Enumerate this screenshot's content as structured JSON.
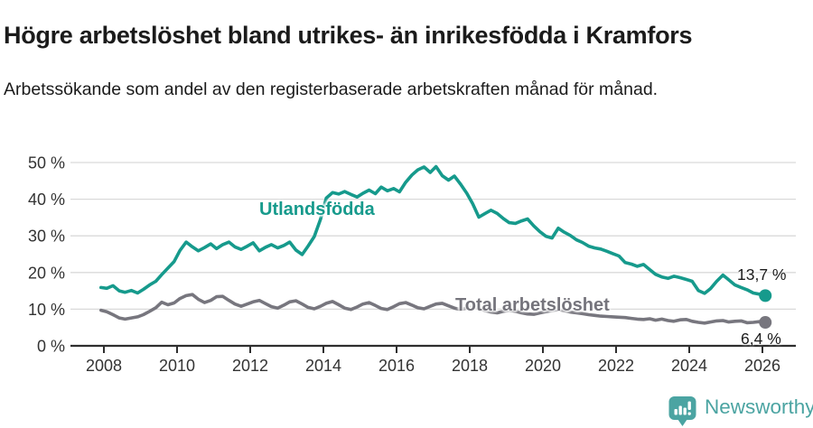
{
  "chart_data": {
    "type": "line",
    "title": "Högre arbetslöshet bland utrikes- än inrikesfödda i Kramfors",
    "subtitle": "Arbetssökande som andel av den registerbaserade arbetskraften månad för månad.",
    "grid": "horizontal",
    "legend": "inline-labels",
    "xlim": [
      2007.6,
      2026.95
    ],
    "ylim": [
      0,
      52
    ],
    "y_axis": {
      "ticks": [
        {
          "v": 0,
          "label": "0 %"
        },
        {
          "v": 10,
          "label": "10 %"
        },
        {
          "v": 20,
          "label": "20 %"
        },
        {
          "v": 30,
          "label": "30 %"
        },
        {
          "v": 40,
          "label": "40 %"
        },
        {
          "v": 50,
          "label": "50 %"
        }
      ]
    },
    "x_axis": {
      "ticks": [
        {
          "v": 2008,
          "label": "2008"
        },
        {
          "v": 2010,
          "label": "2010"
        },
        {
          "v": 2012,
          "label": "2012"
        },
        {
          "v": 2014,
          "label": "2014"
        },
        {
          "v": 2016,
          "label": "2016"
        },
        {
          "v": 2018,
          "label": "2018"
        },
        {
          "v": 2020,
          "label": "2020"
        },
        {
          "v": 2022,
          "label": "2022"
        },
        {
          "v": 2024,
          "label": "2024"
        },
        {
          "v": 2026,
          "label": "2026"
        }
      ]
    },
    "series": [
      {
        "name": "Utlandsfödda",
        "color": "#169a8c",
        "end_value": 13.7,
        "end_label": "13,7 %",
        "points": [
          [
            2007.92,
            15.9
          ],
          [
            2008.08,
            15.7
          ],
          [
            2008.25,
            16.4
          ],
          [
            2008.42,
            15.0
          ],
          [
            2008.58,
            14.6
          ],
          [
            2008.75,
            15.1
          ],
          [
            2008.92,
            14.4
          ],
          [
            2009.08,
            15.4
          ],
          [
            2009.25,
            16.6
          ],
          [
            2009.42,
            17.6
          ],
          [
            2009.58,
            19.4
          ],
          [
            2009.75,
            21.2
          ],
          [
            2009.92,
            23.0
          ],
          [
            2010.08,
            26.0
          ],
          [
            2010.25,
            28.3
          ],
          [
            2010.42,
            27.0
          ],
          [
            2010.58,
            25.9
          ],
          [
            2010.75,
            26.8
          ],
          [
            2010.92,
            27.8
          ],
          [
            2011.08,
            26.5
          ],
          [
            2011.25,
            27.6
          ],
          [
            2011.42,
            28.3
          ],
          [
            2011.58,
            27.0
          ],
          [
            2011.75,
            26.3
          ],
          [
            2011.92,
            27.2
          ],
          [
            2012.08,
            28.1
          ],
          [
            2012.25,
            25.9
          ],
          [
            2012.42,
            26.9
          ],
          [
            2012.58,
            27.6
          ],
          [
            2012.75,
            26.7
          ],
          [
            2012.92,
            27.4
          ],
          [
            2013.08,
            28.3
          ],
          [
            2013.25,
            26.1
          ],
          [
            2013.42,
            24.9
          ],
          [
            2013.58,
            27.2
          ],
          [
            2013.75,
            29.8
          ],
          [
            2013.92,
            34.5
          ],
          [
            2014.08,
            40.3
          ],
          [
            2014.25,
            41.8
          ],
          [
            2014.42,
            41.4
          ],
          [
            2014.58,
            42.1
          ],
          [
            2014.75,
            41.3
          ],
          [
            2014.92,
            40.6
          ],
          [
            2015.08,
            41.6
          ],
          [
            2015.25,
            42.5
          ],
          [
            2015.42,
            41.5
          ],
          [
            2015.58,
            43.3
          ],
          [
            2015.75,
            42.3
          ],
          [
            2015.92,
            42.9
          ],
          [
            2016.08,
            42.0
          ],
          [
            2016.25,
            44.6
          ],
          [
            2016.42,
            46.6
          ],
          [
            2016.58,
            48.0
          ],
          [
            2016.75,
            48.8
          ],
          [
            2016.92,
            47.3
          ],
          [
            2017.08,
            48.9
          ],
          [
            2017.25,
            46.4
          ],
          [
            2017.42,
            45.2
          ],
          [
            2017.58,
            46.3
          ],
          [
            2017.75,
            44.1
          ],
          [
            2017.92,
            41.6
          ],
          [
            2018.08,
            38.8
          ],
          [
            2018.25,
            35.1
          ],
          [
            2018.42,
            36.1
          ],
          [
            2018.58,
            37.0
          ],
          [
            2018.75,
            36.1
          ],
          [
            2018.92,
            34.7
          ],
          [
            2019.08,
            33.6
          ],
          [
            2019.25,
            33.4
          ],
          [
            2019.42,
            34.1
          ],
          [
            2019.58,
            34.6
          ],
          [
            2019.75,
            32.7
          ],
          [
            2019.92,
            31.1
          ],
          [
            2020.08,
            29.9
          ],
          [
            2020.25,
            29.4
          ],
          [
            2020.42,
            32.1
          ],
          [
            2020.58,
            31.0
          ],
          [
            2020.75,
            30.1
          ],
          [
            2020.92,
            28.9
          ],
          [
            2021.08,
            28.2
          ],
          [
            2021.25,
            27.2
          ],
          [
            2021.42,
            26.7
          ],
          [
            2021.58,
            26.4
          ],
          [
            2021.75,
            25.8
          ],
          [
            2021.92,
            25.1
          ],
          [
            2022.08,
            24.5
          ],
          [
            2022.25,
            22.7
          ],
          [
            2022.42,
            22.3
          ],
          [
            2022.58,
            21.7
          ],
          [
            2022.75,
            22.2
          ],
          [
            2022.92,
            20.8
          ],
          [
            2023.08,
            19.5
          ],
          [
            2023.25,
            18.8
          ],
          [
            2023.42,
            18.4
          ],
          [
            2023.58,
            19.0
          ],
          [
            2023.75,
            18.6
          ],
          [
            2023.92,
            18.1
          ],
          [
            2024.08,
            17.6
          ],
          [
            2024.25,
            15.1
          ],
          [
            2024.42,
            14.3
          ],
          [
            2024.58,
            15.6
          ],
          [
            2024.75,
            17.6
          ],
          [
            2024.92,
            19.3
          ],
          [
            2025.08,
            18.0
          ],
          [
            2025.25,
            16.6
          ],
          [
            2025.42,
            15.9
          ],
          [
            2025.58,
            15.3
          ],
          [
            2025.75,
            14.4
          ],
          [
            2025.92,
            14.1
          ],
          [
            2026.08,
            13.7
          ]
        ]
      },
      {
        "name": "Total arbetslöshet",
        "color": "#77767e",
        "end_value": 6.4,
        "end_label": "6,4 %",
        "points": [
          [
            2007.92,
            9.7
          ],
          [
            2008.08,
            9.3
          ],
          [
            2008.25,
            8.5
          ],
          [
            2008.42,
            7.6
          ],
          [
            2008.58,
            7.3
          ],
          [
            2008.75,
            7.6
          ],
          [
            2008.92,
            7.9
          ],
          [
            2009.08,
            8.5
          ],
          [
            2009.25,
            9.4
          ],
          [
            2009.42,
            10.4
          ],
          [
            2009.58,
            11.9
          ],
          [
            2009.75,
            11.2
          ],
          [
            2009.92,
            11.7
          ],
          [
            2010.08,
            12.9
          ],
          [
            2010.25,
            13.7
          ],
          [
            2010.42,
            14.0
          ],
          [
            2010.58,
            12.7
          ],
          [
            2010.75,
            11.8
          ],
          [
            2010.92,
            12.4
          ],
          [
            2011.08,
            13.4
          ],
          [
            2011.25,
            13.5
          ],
          [
            2011.42,
            12.4
          ],
          [
            2011.58,
            11.4
          ],
          [
            2011.75,
            10.8
          ],
          [
            2011.92,
            11.4
          ],
          [
            2012.08,
            12.0
          ],
          [
            2012.25,
            12.4
          ],
          [
            2012.42,
            11.5
          ],
          [
            2012.58,
            10.7
          ],
          [
            2012.75,
            10.3
          ],
          [
            2012.92,
            11.1
          ],
          [
            2013.08,
            12.0
          ],
          [
            2013.25,
            12.3
          ],
          [
            2013.42,
            11.4
          ],
          [
            2013.58,
            10.5
          ],
          [
            2013.75,
            10.1
          ],
          [
            2013.92,
            10.8
          ],
          [
            2014.08,
            11.6
          ],
          [
            2014.25,
            12.1
          ],
          [
            2014.42,
            11.2
          ],
          [
            2014.58,
            10.3
          ],
          [
            2014.75,
            9.9
          ],
          [
            2014.92,
            10.6
          ],
          [
            2015.08,
            11.4
          ],
          [
            2015.25,
            11.8
          ],
          [
            2015.42,
            11.0
          ],
          [
            2015.58,
            10.2
          ],
          [
            2015.75,
            9.9
          ],
          [
            2015.92,
            10.7
          ],
          [
            2016.08,
            11.5
          ],
          [
            2016.25,
            11.8
          ],
          [
            2016.42,
            11.1
          ],
          [
            2016.58,
            10.4
          ],
          [
            2016.75,
            10.1
          ],
          [
            2016.92,
            10.8
          ],
          [
            2017.08,
            11.4
          ],
          [
            2017.25,
            11.6
          ],
          [
            2017.42,
            10.9
          ],
          [
            2017.58,
            10.3
          ],
          [
            2017.75,
            9.9
          ],
          [
            2017.92,
            10.3
          ],
          [
            2018.08,
            10.6
          ],
          [
            2018.25,
            10.2
          ],
          [
            2018.42,
            9.6
          ],
          [
            2018.58,
            9.2
          ],
          [
            2018.75,
            9.0
          ],
          [
            2018.92,
            9.4
          ],
          [
            2019.08,
            9.7
          ],
          [
            2019.25,
            9.4
          ],
          [
            2019.42,
            9.0
          ],
          [
            2019.58,
            8.7
          ],
          [
            2019.75,
            8.6
          ],
          [
            2019.92,
            9.0
          ],
          [
            2020.08,
            9.3
          ],
          [
            2020.25,
            9.6
          ],
          [
            2020.42,
            9.9
          ],
          [
            2020.58,
            9.6
          ],
          [
            2020.75,
            9.2
          ],
          [
            2020.92,
            9.0
          ],
          [
            2021.08,
            8.8
          ],
          [
            2021.25,
            8.5
          ],
          [
            2021.42,
            8.3
          ],
          [
            2021.58,
            8.1
          ],
          [
            2021.75,
            8.0
          ],
          [
            2021.92,
            7.9
          ],
          [
            2022.08,
            7.8
          ],
          [
            2022.25,
            7.7
          ],
          [
            2022.42,
            7.5
          ],
          [
            2022.58,
            7.3
          ],
          [
            2022.75,
            7.2
          ],
          [
            2022.92,
            7.4
          ],
          [
            2023.08,
            7.0
          ],
          [
            2023.25,
            7.3
          ],
          [
            2023.42,
            6.9
          ],
          [
            2023.58,
            6.7
          ],
          [
            2023.75,
            7.1
          ],
          [
            2023.92,
            7.2
          ],
          [
            2024.08,
            6.7
          ],
          [
            2024.25,
            6.4
          ],
          [
            2024.42,
            6.2
          ],
          [
            2024.58,
            6.5
          ],
          [
            2024.75,
            6.8
          ],
          [
            2024.92,
            6.9
          ],
          [
            2025.08,
            6.5
          ],
          [
            2025.25,
            6.7
          ],
          [
            2025.42,
            6.8
          ],
          [
            2025.58,
            6.3
          ],
          [
            2025.75,
            6.4
          ],
          [
            2025.92,
            6.6
          ],
          [
            2026.08,
            6.4
          ]
        ]
      }
    ]
  },
  "annotations": {
    "utlandsfodda_label": "Utlandsfödda",
    "total_label": "Total arbetslöshet",
    "utlandsfodda_end_value": "13,7 %",
    "total_end_value": "6,4 %"
  },
  "footer": {
    "brand_name": "Newsworthy",
    "logo_icon": "bar-chart-speech-bubble-icon",
    "brand_color": "#4ba4a2"
  },
  "colors": {
    "series_foreign_born": "#169a8c",
    "series_total": "#77767e",
    "grid": "#d9d9d9",
    "axis": "#2f2f2f",
    "text": "#1b1b1b"
  }
}
